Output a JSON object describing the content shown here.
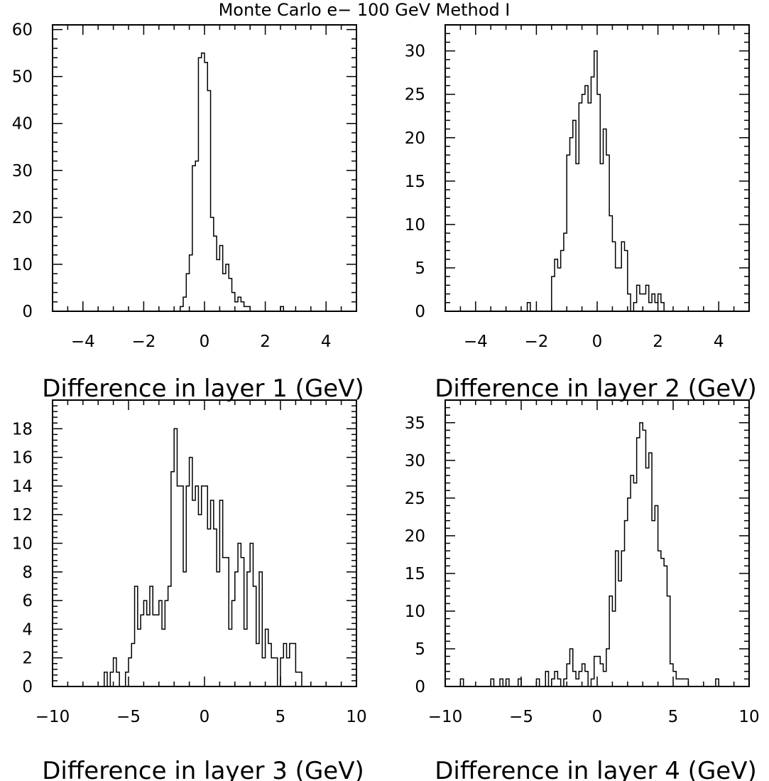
{
  "figure": {
    "title": "Monte Carlo e− 100 GeV Method I"
  },
  "chart_data": [
    {
      "type": "bar",
      "histogram": true,
      "xlabel": "Difference in layer 1 (GeV)",
      "xlim": [
        -5,
        5
      ],
      "ylim": [
        0,
        61
      ],
      "xticks": [
        -4,
        -2,
        0,
        2,
        4
      ],
      "yticks": [
        0,
        10,
        20,
        30,
        40,
        50,
        60
      ],
      "bin_width": 0.1,
      "bin_start": -0.8,
      "values": [
        1,
        3,
        8,
        12,
        31,
        32,
        54,
        55,
        53,
        47,
        20,
        16,
        11,
        14,
        8,
        10,
        7,
        4,
        2,
        3,
        2,
        1,
        1
      ],
      "extra_bins": [
        {
          "start": 2.5,
          "value": 1
        }
      ]
    },
    {
      "type": "bar",
      "histogram": true,
      "xlabel": "Difference in layer 2 (GeV)",
      "xlim": [
        -5,
        5
      ],
      "ylim": [
        0,
        33
      ],
      "xticks": [
        -4,
        -2,
        0,
        2,
        4
      ],
      "yticks": [
        0,
        5,
        10,
        15,
        20,
        25,
        30
      ],
      "bin_width": 0.1,
      "bin_start": -1.5,
      "values": [
        4,
        6,
        5,
        7,
        9,
        18,
        20,
        22,
        17,
        24,
        25,
        26,
        24,
        27,
        30,
        25,
        17,
        21,
        18,
        11,
        8,
        5,
        5,
        8,
        7,
        2,
        0,
        1,
        3,
        2,
        2,
        3,
        1,
        2,
        1,
        2,
        1
      ],
      "extra_bins": [
        {
          "start": -2.3,
          "value": 1
        }
      ]
    },
    {
      "type": "bar",
      "histogram": true,
      "xlabel": "Difference in layer 3 (GeV)",
      "xlim": [
        -10,
        10
      ],
      "ylim": [
        0,
        20
      ],
      "xticks": [
        -10,
        -5,
        0,
        5,
        10
      ],
      "yticks": [
        0,
        2,
        4,
        6,
        8,
        10,
        12,
        14,
        16,
        18
      ],
      "bin_width": 0.2,
      "bin_start": -6.6,
      "values": [
        1,
        0,
        1,
        2,
        1,
        0,
        0,
        1,
        2,
        3,
        7,
        4,
        5,
        6,
        5,
        7,
        5,
        5,
        6,
        4,
        6,
        7,
        15,
        18,
        14,
        14,
        8,
        14,
        16,
        13,
        14,
        12,
        14,
        14,
        11,
        13,
        11,
        8,
        13,
        9,
        9,
        4,
        6,
        8,
        10,
        9,
        4,
        8,
        10,
        7,
        3,
        8,
        2,
        4,
        3,
        2,
        2,
        0,
        2,
        3,
        2,
        3,
        3,
        1,
        1
      ]
    },
    {
      "type": "bar",
      "histogram": true,
      "xlabel": "Difference in layer 4 (GeV)",
      "xlim": [
        -10,
        10
      ],
      "ylim": [
        0,
        38
      ],
      "xticks": [
        -10,
        -5,
        0,
        5,
        10
      ],
      "yticks": [
        0,
        5,
        10,
        15,
        20,
        25,
        30,
        35
      ],
      "bin_width": 0.2,
      "bin_start": -4.0,
      "values": [
        1,
        0,
        0,
        2,
        0,
        1,
        2,
        1,
        0,
        1,
        3,
        5,
        2,
        1,
        2,
        3,
        2,
        0,
        1,
        4,
        4,
        3,
        2,
        5,
        12,
        10,
        18,
        14,
        18,
        22,
        25,
        28,
        27,
        33,
        35,
        34,
        29,
        31,
        22,
        24,
        18,
        17,
        16,
        12,
        3,
        2,
        1,
        1,
        1,
        1,
        0,
        0,
        0,
        0,
        0,
        0,
        0,
        0,
        0,
        1
      ],
      "extra_bins": [
        {
          "start": -9.0,
          "value": 1
        },
        {
          "start": -7.0,
          "value": 1
        },
        {
          "start": -6.4,
          "value": 1
        },
        {
          "start": -6.0,
          "value": 1
        },
        {
          "start": -5.2,
          "value": 1
        }
      ]
    }
  ]
}
